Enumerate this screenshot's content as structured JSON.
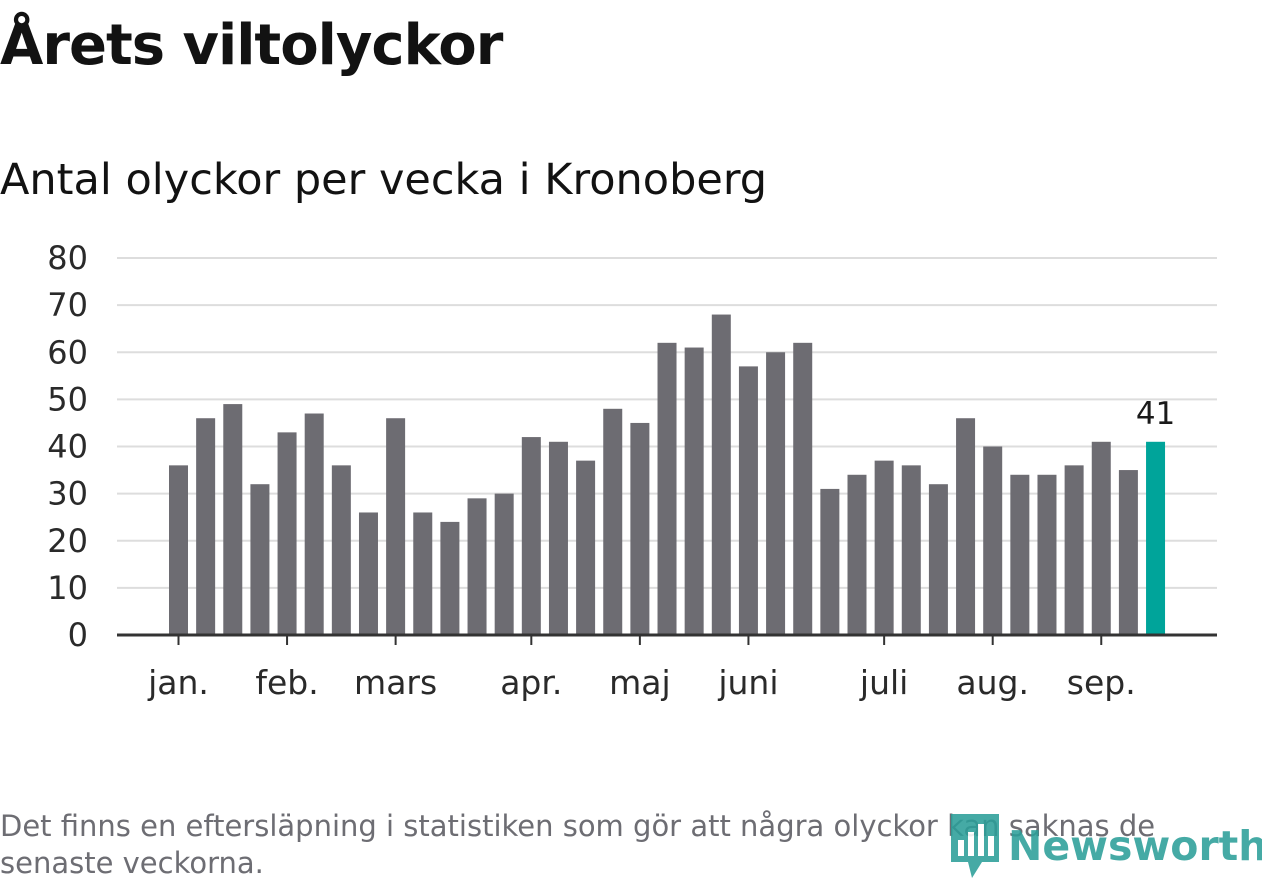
{
  "title": "Årets viltolyckor",
  "subtitle": "Antal olyckor per vecka i Kronoberg",
  "footnote": "Det finns en eftersläpning i statistiken som gör att några olyckor kan saknas de senaste veckorna.",
  "logo": {
    "text": "Newsworthy",
    "icon": "bar-chart-speech-bubble-icon"
  },
  "colors": {
    "bar": "#6d6c72",
    "highlight": "#00a49a",
    "grid": "#dddddd",
    "axis": "#333333",
    "text": "#121212",
    "muted": "#6d6d73"
  },
  "chart_data": {
    "type": "bar",
    "values": [
      36,
      46,
      49,
      32,
      43,
      47,
      36,
      26,
      46,
      26,
      24,
      29,
      30,
      42,
      41,
      37,
      48,
      45,
      62,
      61,
      68,
      57,
      60,
      62,
      31,
      34,
      37,
      36,
      32,
      46,
      40,
      34,
      34,
      36,
      41,
      35,
      41
    ],
    "highlight_index": 36,
    "highlight_label": "41",
    "ylim": [
      0,
      80
    ],
    "yticks": [
      "0",
      "10",
      "20",
      "30",
      "40",
      "50",
      "60",
      "70",
      "80"
    ],
    "xticks": [
      {
        "label": "jan.",
        "week": 1
      },
      {
        "label": "feb.",
        "week": 5
      },
      {
        "label": "mars",
        "week": 9
      },
      {
        "label": "apr.",
        "week": 14
      },
      {
        "label": "maj",
        "week": 18
      },
      {
        "label": "juni",
        "week": 22
      },
      {
        "label": "juli",
        "week": 27
      },
      {
        "label": "aug.",
        "week": 31
      },
      {
        "label": "sep.",
        "week": 35
      }
    ],
    "grid": true
  }
}
